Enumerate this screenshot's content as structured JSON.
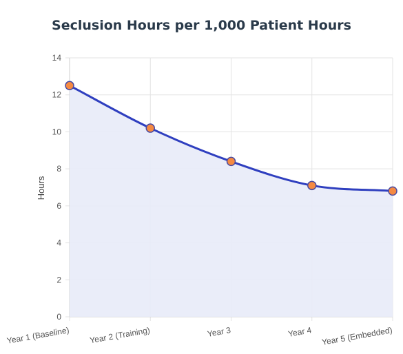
{
  "chart_data": {
    "type": "area",
    "title": "Seclusion Hours per 1,000 Patient Hours",
    "xlabel": "",
    "ylabel": "Hours",
    "categories": [
      "Year 1 (Baseline)",
      "Year 2 (Training)",
      "Year 3",
      "Year 4",
      "Year 5 (Embedded)"
    ],
    "series": [
      {
        "values": [
          12.5,
          10.2,
          8.4,
          7.1,
          6.8
        ]
      }
    ],
    "ylim": [
      0,
      14
    ],
    "yticks": [
      0,
      2,
      4,
      6,
      8,
      10,
      12,
      14
    ],
    "grid": true,
    "legend": "none",
    "colors": {
      "line": "#2f3fbf",
      "fill": "#e8ebf8",
      "point": "#f58a42",
      "point_stroke": "#4a4aa0",
      "grid": "#e3e3e3"
    }
  }
}
